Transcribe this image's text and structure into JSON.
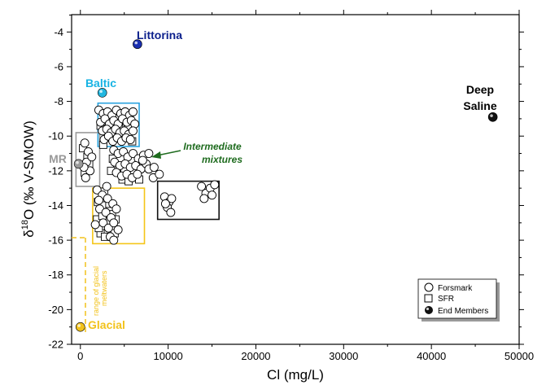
{
  "chart_data": {
    "type": "scatter",
    "xlabel": "Cl (mg/L)",
    "ylabel_parts": {
      "main": "δ",
      "sup": "18",
      "rest": "O (‰ V-SMOW)"
    },
    "xlim": [
      -1000,
      50000
    ],
    "ylim": [
      -22,
      -3
    ],
    "xticks": [
      "0",
      "10000",
      "20000",
      "30000",
      "40000",
      "50000"
    ],
    "yticks": [
      "-4",
      "-6",
      "-8",
      "-10",
      "-12",
      "-14",
      "-16",
      "-18",
      "-20",
      "-22"
    ],
    "end_members": [
      {
        "label": "Littorina",
        "x": 6500,
        "y": -4.7,
        "color": "#1a2fb0",
        "label_color": "#0b1f8c"
      },
      {
        "label": "Baltic",
        "x": 2500,
        "y": -7.5,
        "color": "#22b7e0",
        "label_color": "#17b3e3"
      },
      {
        "label": "Deep",
        "label2": "Saline",
        "x": 47000,
        "y": -8.9,
        "color": "#111111",
        "label_color": "#000000"
      },
      {
        "label": "MR",
        "x": -200,
        "y": -11.6,
        "color": "#9a9a9a",
        "label_color": "#999999"
      },
      {
        "label": "Glacial",
        "x": 0,
        "y": -21.0,
        "color": "#f2c21b",
        "label_color": "#f2c21b"
      }
    ],
    "boxes": [
      {
        "name": "baltic-box",
        "x0": 2000,
        "x1": 6700,
        "y0": -8.1,
        "y1": -10.6,
        "color": "#2aa3df"
      },
      {
        "name": "mr-box",
        "x0": -500,
        "x1": 2200,
        "y0": -9.8,
        "y1": -12.9,
        "color": "#9a9a9a"
      },
      {
        "name": "glacial-box",
        "x0": 1400,
        "x1": 7300,
        "y0": -13.0,
        "y1": -16.2,
        "color": "#f5c518"
      },
      {
        "name": "deep-box",
        "x0": 8800,
        "x1": 15800,
        "y0": -12.6,
        "y1": -14.8,
        "color": "#111111"
      }
    ],
    "annotations": {
      "intermediate_line1": "Intermediate",
      "intermediate_line2": "mixtures",
      "meltwater_line1": "range of glacial",
      "meltwater_line2": "meltwaters",
      "intermediate_color": "#1e6b1e",
      "meltwater_color": "#f2c21b"
    },
    "legend": {
      "placement": "bottom-right",
      "entries": [
        "Forsmark",
        "SFR",
        "End Members"
      ]
    },
    "forsmark": [
      [
        2100,
        -8.5
      ],
      [
        2600,
        -8.7
      ],
      [
        3100,
        -8.6
      ],
      [
        3600,
        -8.8
      ],
      [
        4100,
        -8.5
      ],
      [
        4600,
        -8.7
      ],
      [
        5100,
        -8.6
      ],
      [
        5600,
        -8.8
      ],
      [
        6000,
        -8.6
      ],
      [
        2300,
        -9.2
      ],
      [
        2800,
        -9.0
      ],
      [
        3300,
        -9.3
      ],
      [
        3800,
        -9.1
      ],
      [
        4300,
        -9.3
      ],
      [
        4800,
        -9.0
      ],
      [
        5300,
        -9.2
      ],
      [
        5800,
        -9.1
      ],
      [
        6200,
        -9.3
      ],
      [
        2500,
        -9.7
      ],
      [
        3000,
        -9.6
      ],
      [
        3500,
        -9.8
      ],
      [
        4000,
        -9.6
      ],
      [
        4500,
        -9.8
      ],
      [
        5000,
        -9.7
      ],
      [
        5500,
        -9.9
      ],
      [
        6000,
        -9.7
      ],
      [
        2700,
        -10.2
      ],
      [
        3200,
        -10.0
      ],
      [
        3700,
        -10.3
      ],
      [
        4200,
        -10.1
      ],
      [
        4700,
        -10.3
      ],
      [
        5200,
        -10.1
      ],
      [
        5700,
        -10.2
      ],
      [
        500,
        -10.4
      ],
      [
        900,
        -10.9
      ],
      [
        700,
        -11.5
      ],
      [
        1100,
        -12.0
      ],
      [
        600,
        -12.4
      ],
      [
        1300,
        -11.2
      ],
      [
        400,
        -11.8
      ],
      [
        3800,
        -10.8
      ],
      [
        4300,
        -11.0
      ],
      [
        4900,
        -10.9
      ],
      [
        5400,
        -11.2
      ],
      [
        6000,
        -11.0
      ],
      [
        6600,
        -11.3
      ],
      [
        7200,
        -11.1
      ],
      [
        3900,
        -11.5
      ],
      [
        4500,
        -11.7
      ],
      [
        5100,
        -11.6
      ],
      [
        5700,
        -11.8
      ],
      [
        6300,
        -11.7
      ],
      [
        6900,
        -11.9
      ],
      [
        7500,
        -11.6
      ],
      [
        4100,
        -12.1
      ],
      [
        4700,
        -12.3
      ],
      [
        5300,
        -12.2
      ],
      [
        5900,
        -12.4
      ],
      [
        6500,
        -12.2
      ],
      [
        7100,
        -11.4
      ],
      [
        7800,
        -11.9
      ],
      [
        8400,
        -11.8
      ],
      [
        8300,
        -12.4
      ],
      [
        9000,
        -12.2
      ],
      [
        7800,
        -11.0
      ],
      [
        9600,
        -13.5
      ],
      [
        10100,
        -13.8
      ],
      [
        9900,
        -14.1
      ],
      [
        10400,
        -13.6
      ],
      [
        10300,
        -14.4
      ],
      [
        9700,
        -13.9
      ],
      [
        13800,
        -12.9
      ],
      [
        14300,
        -13.3
      ],
      [
        14800,
        -13.0
      ],
      [
        15300,
        -12.8
      ],
      [
        14100,
        -13.6
      ],
      [
        15000,
        -13.4
      ],
      [
        1900,
        -13.1
      ],
      [
        2500,
        -13.4
      ],
      [
        3100,
        -13.6
      ],
      [
        3700,
        -13.9
      ],
      [
        2200,
        -14.2
      ],
      [
        2900,
        -14.4
      ],
      [
        3500,
        -14.7
      ],
      [
        4100,
        -14.2
      ],
      [
        2600,
        -15.0
      ],
      [
        3200,
        -15.3
      ],
      [
        3800,
        -15.0
      ],
      [
        4300,
        -15.4
      ],
      [
        3400,
        -15.8
      ],
      [
        3800,
        -16.0
      ],
      [
        1700,
        -15.1
      ],
      [
        3000,
        -12.9
      ],
      [
        2100,
        -13.7
      ]
    ],
    "sfr": [
      [
        2300,
        -9.4
      ],
      [
        2900,
        -9.6
      ],
      [
        3400,
        -9.1
      ],
      [
        3900,
        -9.9
      ],
      [
        4400,
        -9.4
      ],
      [
        4900,
        -10.0
      ],
      [
        5400,
        -9.5
      ],
      [
        5900,
        -10.3
      ],
      [
        2600,
        -10.5
      ],
      [
        3300,
        -10.1
      ],
      [
        3000,
        -8.9
      ],
      [
        5000,
        -8.9
      ],
      [
        300,
        -10.7
      ],
      [
        800,
        -11.2
      ],
      [
        500,
        -12.1
      ],
      [
        1000,
        -11.6
      ],
      [
        3700,
        -11.3
      ],
      [
        4200,
        -11.9
      ],
      [
        4800,
        -12.5
      ],
      [
        3500,
        -12.0
      ],
      [
        5500,
        -12.6
      ],
      [
        6100,
        -12.0
      ],
      [
        6700,
        -12.5
      ],
      [
        2000,
        -13.8
      ],
      [
        2500,
        -14.0
      ],
      [
        3000,
        -14.9
      ],
      [
        3600,
        -14.5
      ],
      [
        2300,
        -15.6
      ],
      [
        2800,
        -15.8
      ],
      [
        4000,
        -14.8
      ],
      [
        1900,
        -14.8
      ],
      [
        2700,
        -13.2
      ],
      [
        3300,
        -13.9
      ],
      [
        2100,
        -15.3
      ],
      [
        3900,
        -15.6
      ],
      [
        2500,
        -14.6
      ]
    ]
  }
}
